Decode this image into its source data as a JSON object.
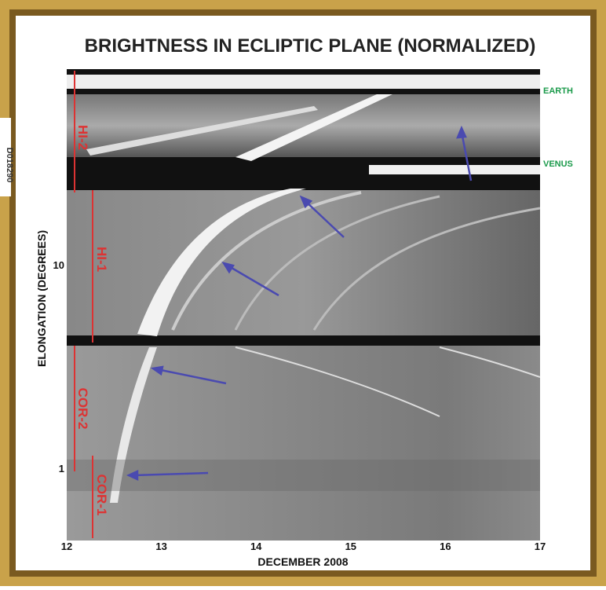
{
  "side_label": "D018290",
  "title": "BRIGHTNESS IN ECLIPTIC PLANE (NORMALIZED)",
  "y_axis_label": "ELONGATION (DEGREES)",
  "x_axis_label": "DECEMBER 2008",
  "x_ticks": [
    "12",
    "13",
    "14",
    "15",
    "16",
    "17"
  ],
  "y_ticks": [
    "10",
    "1"
  ],
  "instrument_labels": [
    "HI-2",
    "HI-1",
    "COR-2",
    "COR-1"
  ],
  "planet_labels": [
    "EARTH",
    "VENUS"
  ]
}
